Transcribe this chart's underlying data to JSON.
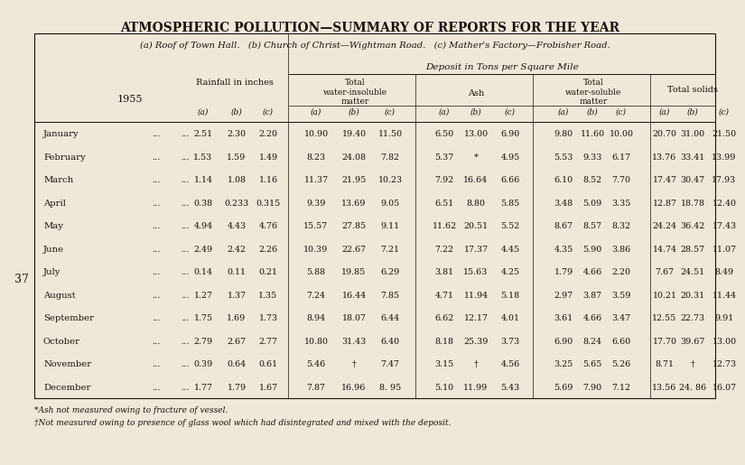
{
  "title": "ATMOSPHERIC POLLUTION—SUMMARY OF REPORTS FOR THE YEAR",
  "subtitle": "(a) Roof of Town Hall.   (b) Church of Christ—Wightman Road.   (c) Mather's Factory—Frobisher Road.",
  "deposit_header": "Deposit in Tons per Square Mile",
  "year_label": "1955",
  "months": [
    "January",
    "February",
    "March",
    "April",
    "May",
    "June",
    "July",
    "August",
    "September",
    "October",
    "November",
    "December"
  ],
  "data": {
    "rainfall": [
      [
        "2.51",
        "2.30",
        "2.20"
      ],
      [
        "1.53",
        "1.59",
        "1.49"
      ],
      [
        "1.14",
        "1.08",
        "1.16"
      ],
      [
        "0.38",
        "0.233",
        "0.315"
      ],
      [
        "4.94",
        "4.43",
        "4.76"
      ],
      [
        "2.49",
        "2.42",
        "2.26"
      ],
      [
        "0.14",
        "0.11",
        "0.21"
      ],
      [
        "1.27",
        "1.37",
        "1.35"
      ],
      [
        "1.75",
        "1.69",
        "1.73"
      ],
      [
        "2.79",
        "2.67",
        "2.77"
      ],
      [
        "0.39",
        "0.64",
        "0.61"
      ],
      [
        "1.77",
        "1.79",
        "1.67"
      ]
    ],
    "water_insoluble": [
      [
        "10.90",
        "19.40",
        "11.50"
      ],
      [
        "8.23",
        "24.08",
        "7.82"
      ],
      [
        "11.37",
        "21.95",
        "10.23"
      ],
      [
        "9.39",
        "13.69",
        "9.05"
      ],
      [
        "15.57",
        "27.85",
        "9.11"
      ],
      [
        "10.39",
        "22.67",
        "7.21"
      ],
      [
        "5.88",
        "19.85",
        "6.29"
      ],
      [
        "7.24",
        "16.44",
        "7.85"
      ],
      [
        "8.94",
        "18.07",
        "6.44"
      ],
      [
        "10.80",
        "31.43",
        "6.40"
      ],
      [
        "5.46",
        "†",
        "7.47"
      ],
      [
        "7.87",
        "16.96",
        "8. 95"
      ]
    ],
    "ash": [
      [
        "6.50",
        "13.00",
        "6.90"
      ],
      [
        "5.37",
        "*",
        "4.95"
      ],
      [
        "7.92",
        "16.64",
        "6.66"
      ],
      [
        "6.51",
        "8.80",
        "5.85"
      ],
      [
        "11.62",
        "20.51",
        "5.52"
      ],
      [
        "7.22",
        "17.37",
        "4.45"
      ],
      [
        "3.81",
        "15.63",
        "4.25"
      ],
      [
        "4.71",
        "11.94",
        "5.18"
      ],
      [
        "6.62",
        "12.17",
        "4.01"
      ],
      [
        "8.18",
        "25.39",
        "3.73"
      ],
      [
        "3.15",
        "†",
        "4.56"
      ],
      [
        "5.10",
        "11.99",
        "5.43"
      ]
    ],
    "water_soluble": [
      [
        "9.80",
        "11.60",
        "10.00"
      ],
      [
        "5.53",
        "9.33",
        "6.17"
      ],
      [
        "6.10",
        "8.52",
        "7.70"
      ],
      [
        "3.48",
        "5.09",
        "3.35"
      ],
      [
        "8.67",
        "8.57",
        "8.32"
      ],
      [
        "4.35",
        "5.90",
        "3.86"
      ],
      [
        "1.79",
        "4.66",
        "2.20"
      ],
      [
        "2.97",
        "3.87",
        "3.59"
      ],
      [
        "3.61",
        "4.66",
        "3.47"
      ],
      [
        "6.90",
        "8.24",
        "6.60"
      ],
      [
        "3.25",
        "5.65",
        "5.26"
      ],
      [
        "5.69",
        "7.90",
        "7.12"
      ]
    ],
    "total_solids": [
      [
        "20.70",
        "31.00",
        "21.50"
      ],
      [
        "13.76",
        "33.41",
        "13.99"
      ],
      [
        "17.47",
        "30.47",
        "17.93"
      ],
      [
        "12.87",
        "18.78",
        "12.40"
      ],
      [
        "24.24",
        "36.42",
        "17.43"
      ],
      [
        "14.74",
        "28.57",
        "11.07"
      ],
      [
        "7.67",
        "24.51",
        "8.49"
      ],
      [
        "10.21",
        "20.31",
        "11.44"
      ],
      [
        "12.55",
        "22.73",
        "9.91"
      ],
      [
        "17.70",
        "39.67",
        "13.00"
      ],
      [
        "8.71",
        "†",
        "12.73"
      ],
      [
        "13.56",
        "24. 86",
        "16.07"
      ]
    ]
  },
  "footnote1": "*Ash not measured owing to fracture of vessel.",
  "footnote2": "†Not measured owing to presence of glass wool which had disintegrated and mixed with the deposit.",
  "bg_color": "#ede8d8",
  "text_color": "#1a1208"
}
